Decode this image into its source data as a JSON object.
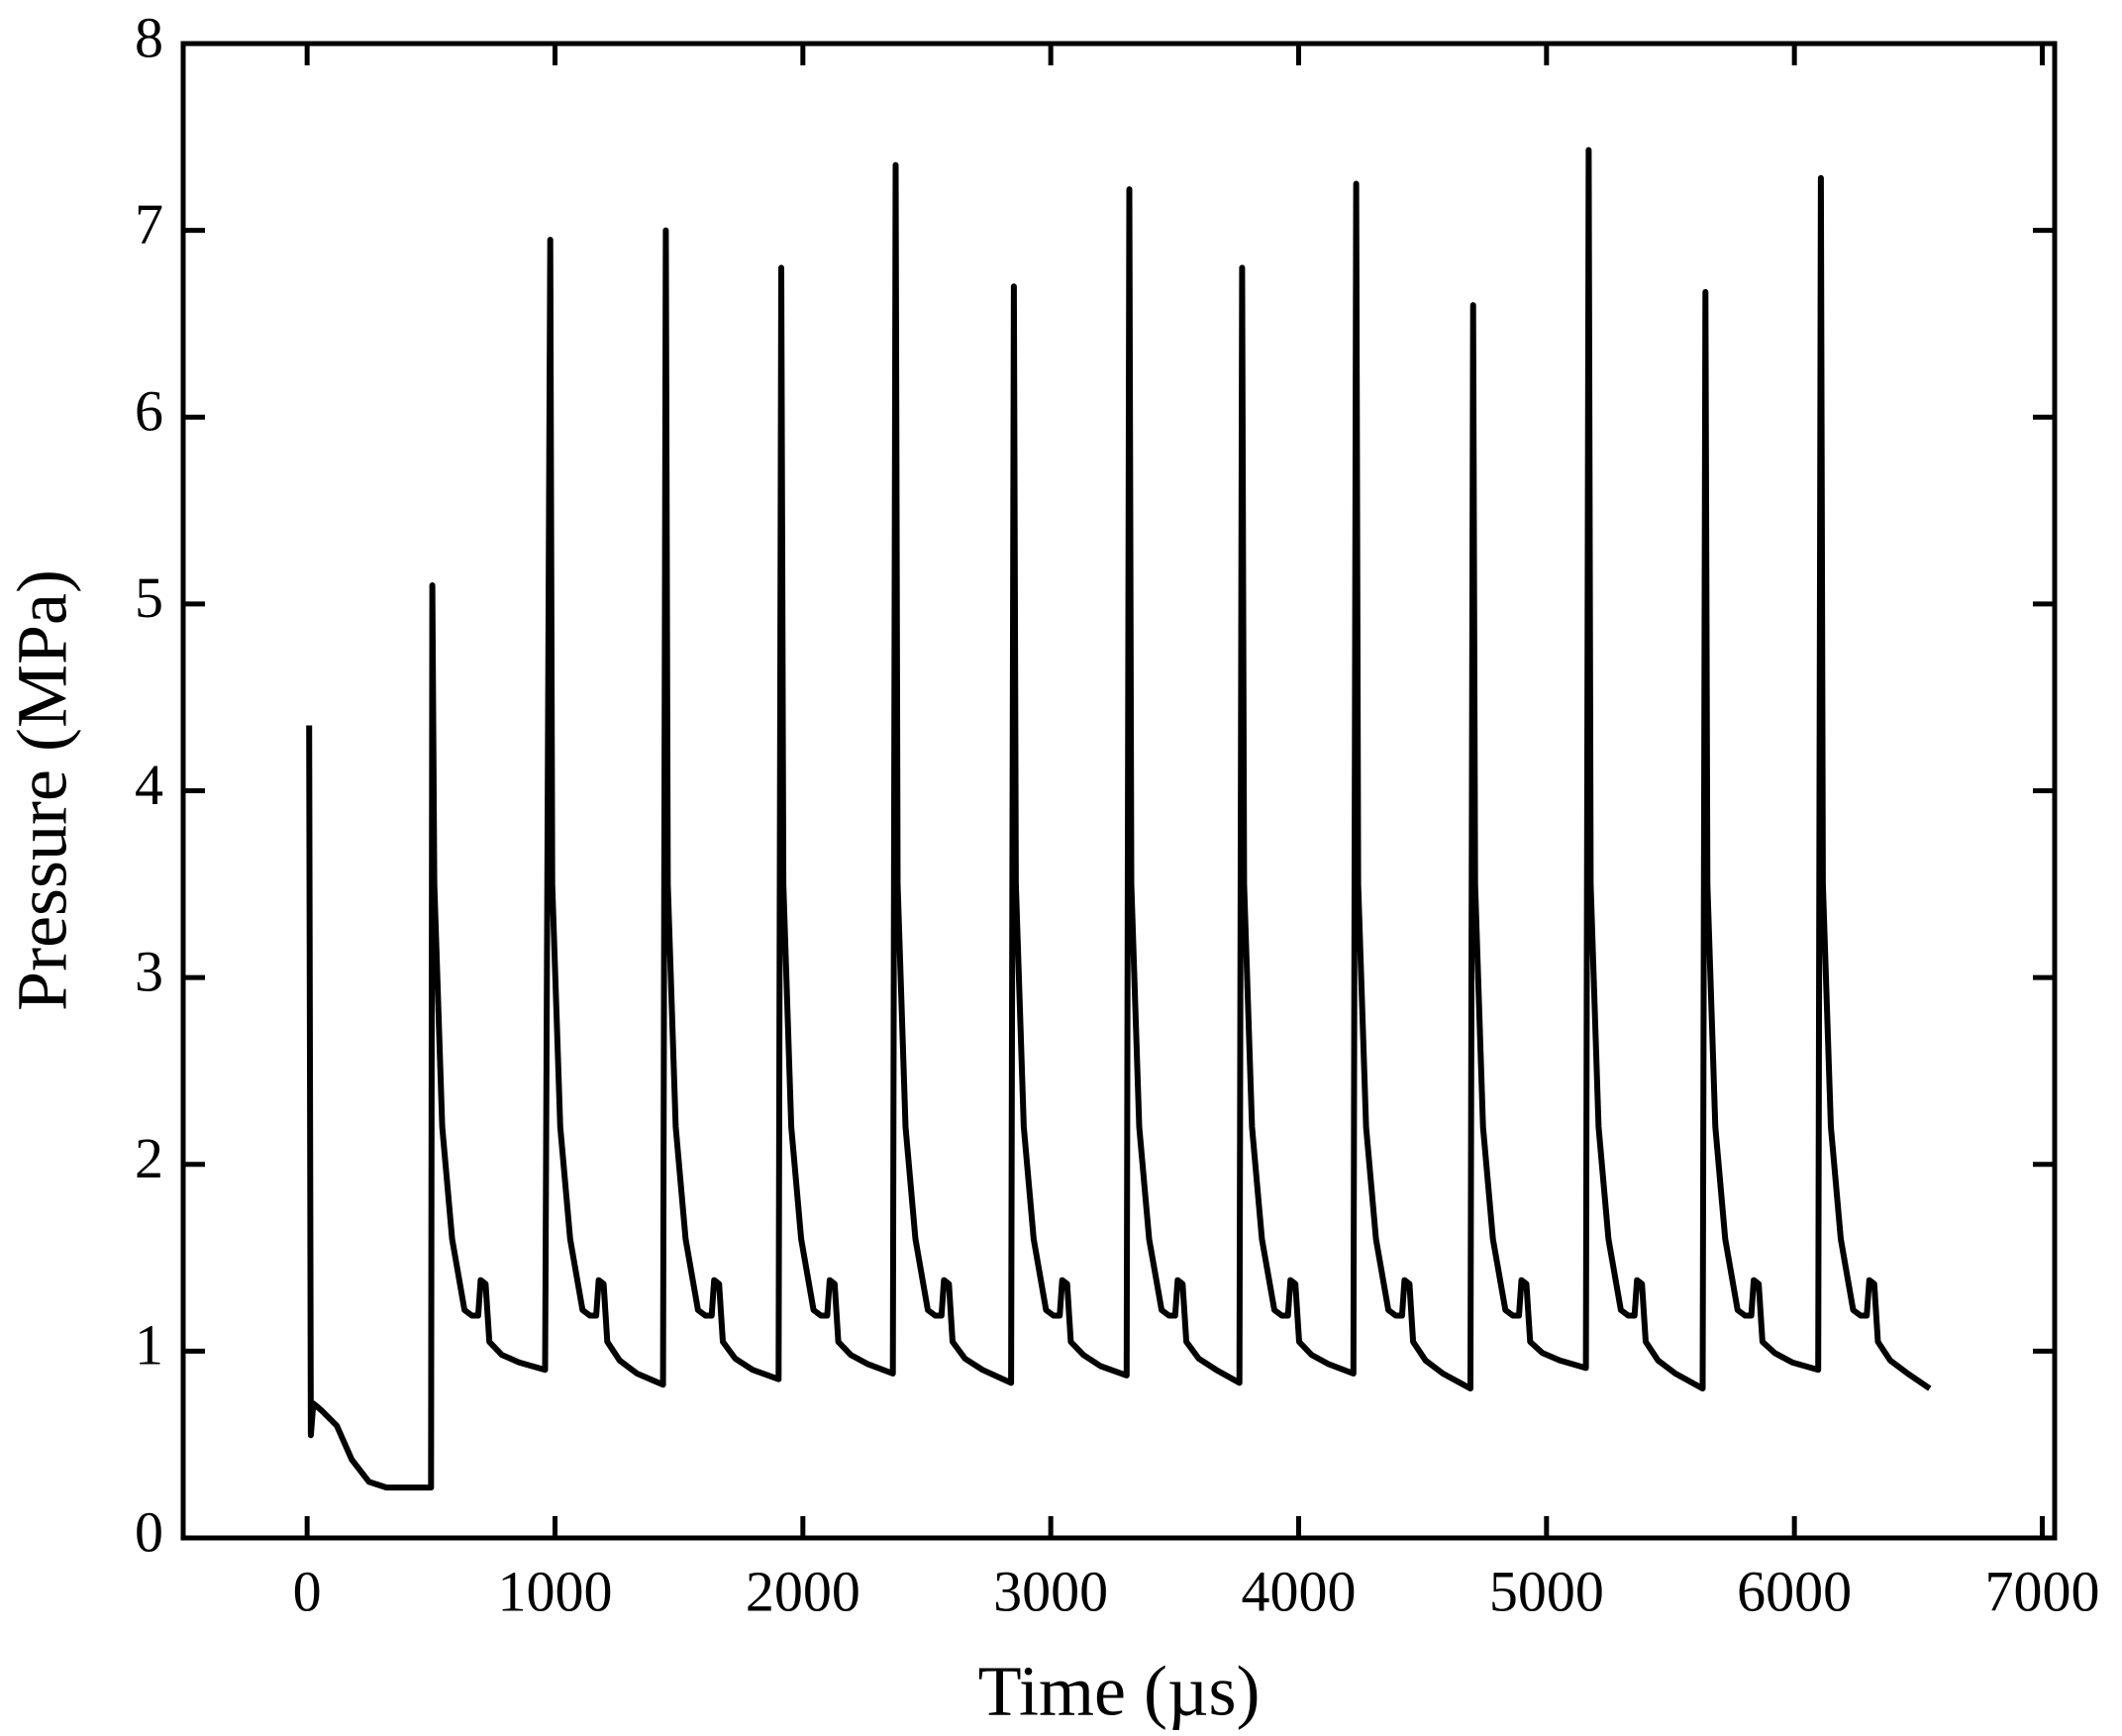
{
  "chart_data": {
    "type": "line",
    "x_label": "Time (µs)",
    "y_label": "Pressure (MPa)",
    "xlim": [
      -500,
      7050
    ],
    "ylim": [
      0,
      8
    ],
    "xticks": [
      0,
      1000,
      2000,
      3000,
      4000,
      5000,
      6000,
      7000
    ],
    "yticks": [
      0,
      1,
      2,
      3,
      4,
      5,
      6,
      7,
      8
    ],
    "grid": false,
    "series": [
      {
        "color": "#000000",
        "x": [
          8,
          15,
          25,
          60,
          120,
          180,
          250,
          320,
          500,
          505,
          513,
          545,
          585,
          635,
          665,
          690,
          700,
          720,
          735,
          785,
          855,
          960,
          981,
          989,
          1021,
          1061,
          1111,
          1141,
          1166,
          1176,
          1196,
          1211,
          1261,
          1331,
          1436,
          1447,
          1455,
          1487,
          1527,
          1577,
          1607,
          1632,
          1642,
          1662,
          1677,
          1727,
          1797,
          1902,
          1913,
          1921,
          1953,
          1993,
          2043,
          2073,
          2098,
          2108,
          2128,
          2143,
          2193,
          2263,
          2363,
          2374,
          2382,
          2414,
          2454,
          2504,
          2534,
          2559,
          2569,
          2589,
          2604,
          2654,
          2724,
          2840,
          2851,
          2859,
          2891,
          2931,
          2981,
          3011,
          3036,
          3046,
          3066,
          3081,
          3131,
          3201,
          3306,
          3317,
          3325,
          3357,
          3397,
          3447,
          3477,
          3502,
          3512,
          3532,
          3547,
          3597,
          3667,
          3761,
          3772,
          3780,
          3812,
          3852,
          3902,
          3932,
          3957,
          3967,
          3987,
          4002,
          4052,
          4122,
          4221,
          4232,
          4240,
          4272,
          4312,
          4362,
          4392,
          4417,
          4427,
          4447,
          4462,
          4512,
          4582,
          4693,
          4704,
          4712,
          4744,
          4784,
          4834,
          4864,
          4889,
          4899,
          4919,
          4934,
          4984,
          5054,
          5159,
          5170,
          5178,
          5210,
          5250,
          5300,
          5330,
          5355,
          5365,
          5385,
          5400,
          5450,
          5520,
          5630,
          5641,
          5649,
          5681,
          5721,
          5771,
          5801,
          5826,
          5836,
          5856,
          5871,
          5921,
          5991,
          6096,
          6107,
          6115,
          6147,
          6187,
          6237,
          6267,
          6292,
          6302,
          6322,
          6337,
          6387,
          6457,
          6546
        ],
        "values": [
          4.35,
          0.55,
          0.72,
          0.68,
          0.6,
          0.42,
          0.3,
          0.27,
          0.27,
          5.1,
          3.5,
          2.2,
          1.6,
          1.22,
          1.19,
          1.19,
          1.38,
          1.36,
          1.05,
          0.98,
          0.94,
          0.9,
          6.95,
          3.5,
          2.2,
          1.6,
          1.22,
          1.19,
          1.19,
          1.38,
          1.36,
          1.05,
          0.95,
          0.88,
          0.82,
          7.0,
          3.5,
          2.2,
          1.6,
          1.22,
          1.19,
          1.19,
          1.38,
          1.36,
          1.05,
          0.96,
          0.9,
          0.85,
          6.8,
          3.5,
          2.2,
          1.6,
          1.22,
          1.19,
          1.19,
          1.38,
          1.36,
          1.05,
          0.98,
          0.93,
          0.88,
          7.35,
          3.5,
          2.2,
          1.6,
          1.22,
          1.19,
          1.19,
          1.38,
          1.36,
          1.05,
          0.96,
          0.9,
          0.83,
          6.7,
          3.5,
          2.2,
          1.6,
          1.22,
          1.19,
          1.19,
          1.38,
          1.36,
          1.05,
          0.98,
          0.92,
          0.87,
          7.22,
          3.5,
          2.2,
          1.6,
          1.22,
          1.19,
          1.19,
          1.38,
          1.36,
          1.05,
          0.96,
          0.9,
          0.83,
          6.8,
          3.5,
          2.2,
          1.6,
          1.22,
          1.19,
          1.19,
          1.38,
          1.36,
          1.05,
          0.98,
          0.93,
          0.88,
          7.25,
          3.5,
          2.2,
          1.6,
          1.22,
          1.19,
          1.19,
          1.38,
          1.36,
          1.05,
          0.95,
          0.88,
          0.8,
          6.6,
          3.5,
          2.2,
          1.6,
          1.22,
          1.19,
          1.19,
          1.38,
          1.36,
          1.05,
          0.99,
          0.95,
          0.91,
          7.43,
          3.5,
          2.2,
          1.6,
          1.22,
          1.19,
          1.19,
          1.38,
          1.36,
          1.05,
          0.95,
          0.88,
          0.8,
          6.67,
          3.5,
          2.2,
          1.6,
          1.22,
          1.19,
          1.19,
          1.38,
          1.36,
          1.05,
          0.99,
          0.94,
          0.9,
          7.28,
          3.5,
          2.2,
          1.6,
          1.22,
          1.19,
          1.19,
          1.38,
          1.36,
          1.05,
          0.95,
          0.88,
          0.8
        ]
      }
    ]
  }
}
